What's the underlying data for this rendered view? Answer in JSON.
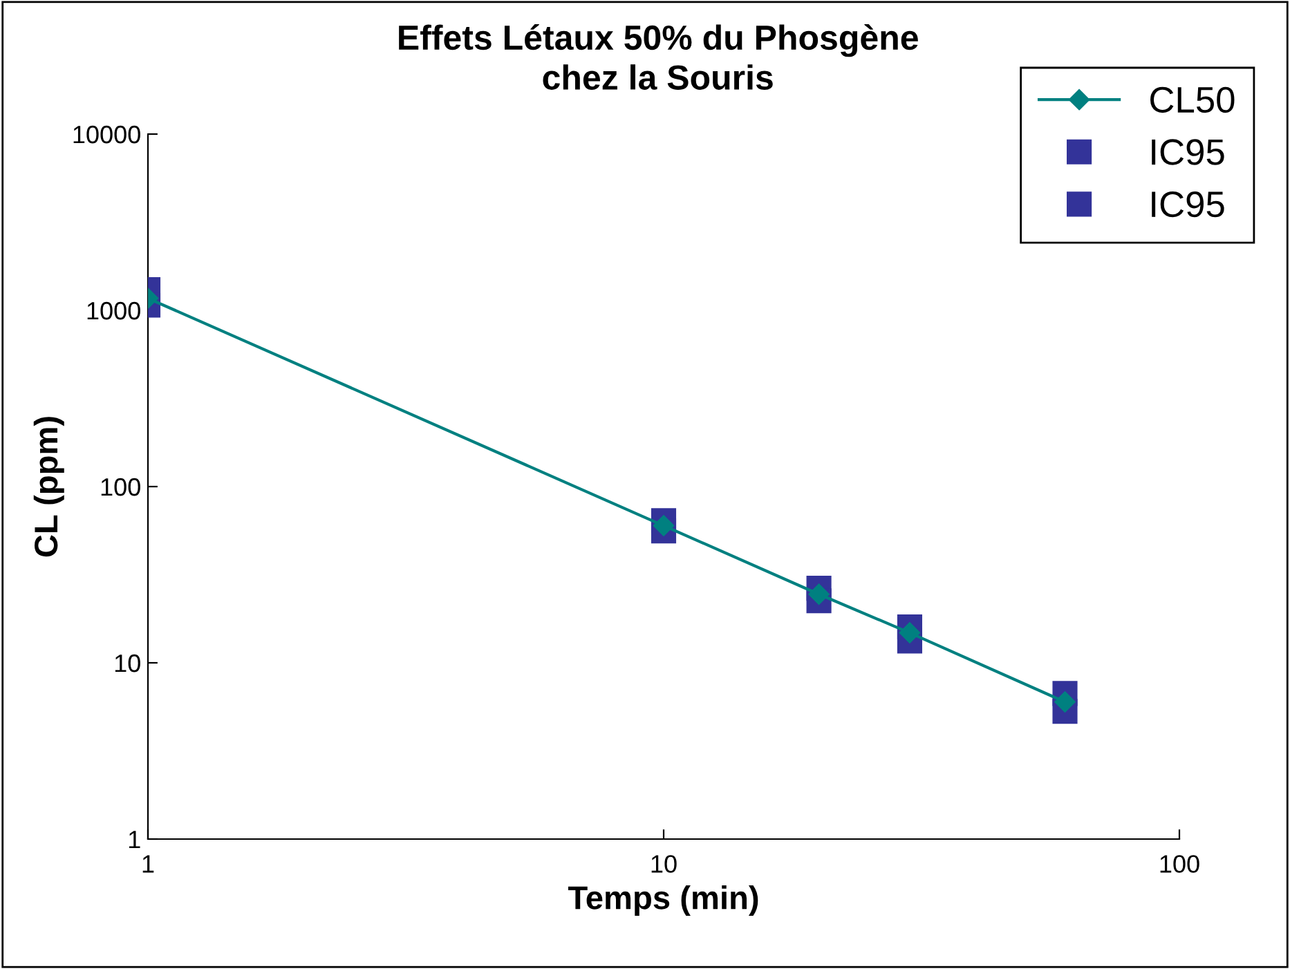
{
  "chart_data": {
    "type": "line",
    "title": "Effets Létaux 50% du Phosgène\nchez la Souris",
    "xlabel": "Temps (min)",
    "ylabel": "CL (ppm)",
    "log": "xy",
    "x": [
      1,
      10,
      20,
      30,
      60
    ],
    "series": [
      {
        "name": "CL50",
        "color": "#008080",
        "values": [
          1170,
          60,
          24.5,
          14.8,
          6.0
        ],
        "marker": "diamond"
      },
      {
        "name": "IC95",
        "color": "#333399",
        "values": [
          1310,
          64,
          26.5,
          16,
          6.7
        ],
        "marker": "square",
        "type": "scatter"
      },
      {
        "name": "IC95",
        "color": "#333399",
        "values": [
          1070,
          56,
          22.5,
          13.3,
          5.3
        ],
        "marker": "square",
        "type": "scatter"
      }
    ],
    "xlim": [
      1,
      100
    ],
    "xticks": [
      1,
      10,
      100
    ],
    "ylim": [
      1,
      10000
    ],
    "yticks": [
      1,
      10,
      100,
      1000,
      10000
    ],
    "grid": false,
    "legend": "top right"
  }
}
